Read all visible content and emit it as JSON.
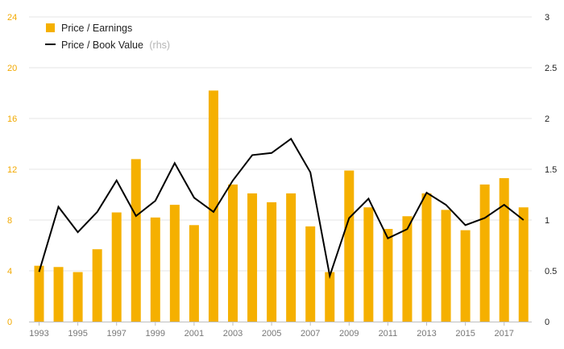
{
  "chart_data": {
    "type": "bar",
    "categories": [
      "1993",
      "1994",
      "1995",
      "1996",
      "1997",
      "1998",
      "1999",
      "2000",
      "2001",
      "2002",
      "2003",
      "2004",
      "2005",
      "2006",
      "2007",
      "2008",
      "2009",
      "2010",
      "2011",
      "2012",
      "2013",
      "2014",
      "2015",
      "2016",
      "2017",
      "2018"
    ],
    "x_tick_labels": [
      "1993",
      "1995",
      "1997",
      "1999",
      "2001",
      "2003",
      "2005",
      "2007",
      "2009",
      "2011",
      "2013",
      "2015",
      "2017"
    ],
    "y_left": {
      "ylim": [
        0,
        24
      ],
      "ticks": [
        "0",
        "4",
        "8",
        "12",
        "16",
        "20",
        "24"
      ],
      "tick_color": "#f2a900"
    },
    "y_right": {
      "ylim": [
        0,
        3
      ],
      "ticks": [
        "0",
        "0.5",
        "1",
        "1.5",
        "2",
        "2.5",
        "3"
      ]
    },
    "grid": "horizontal",
    "legend_position": "top-left",
    "series": [
      {
        "name": "Price / Earnings",
        "type": "bar",
        "axis": "left",
        "color": "#f5b000",
        "values": [
          4.4,
          4.3,
          3.9,
          5.7,
          8.6,
          12.8,
          8.2,
          9.2,
          7.6,
          18.2,
          10.8,
          10.1,
          9.4,
          10.1,
          7.5,
          3.9,
          11.9,
          9.0,
          7.3,
          8.3,
          10.1,
          8.8,
          7.2,
          10.8,
          11.3,
          9.0
        ]
      },
      {
        "name": "Price / Book Value",
        "name_note": "(rhs)",
        "type": "line",
        "axis": "right",
        "color": "#000000",
        "values": [
          0.49,
          1.13,
          0.88,
          1.08,
          1.39,
          1.04,
          1.19,
          1.56,
          1.22,
          1.08,
          1.39,
          1.64,
          1.66,
          1.8,
          1.47,
          0.45,
          1.02,
          1.21,
          0.82,
          0.91,
          1.27,
          1.15,
          0.95,
          1.02,
          1.15,
          1.0
        ]
      }
    ]
  }
}
